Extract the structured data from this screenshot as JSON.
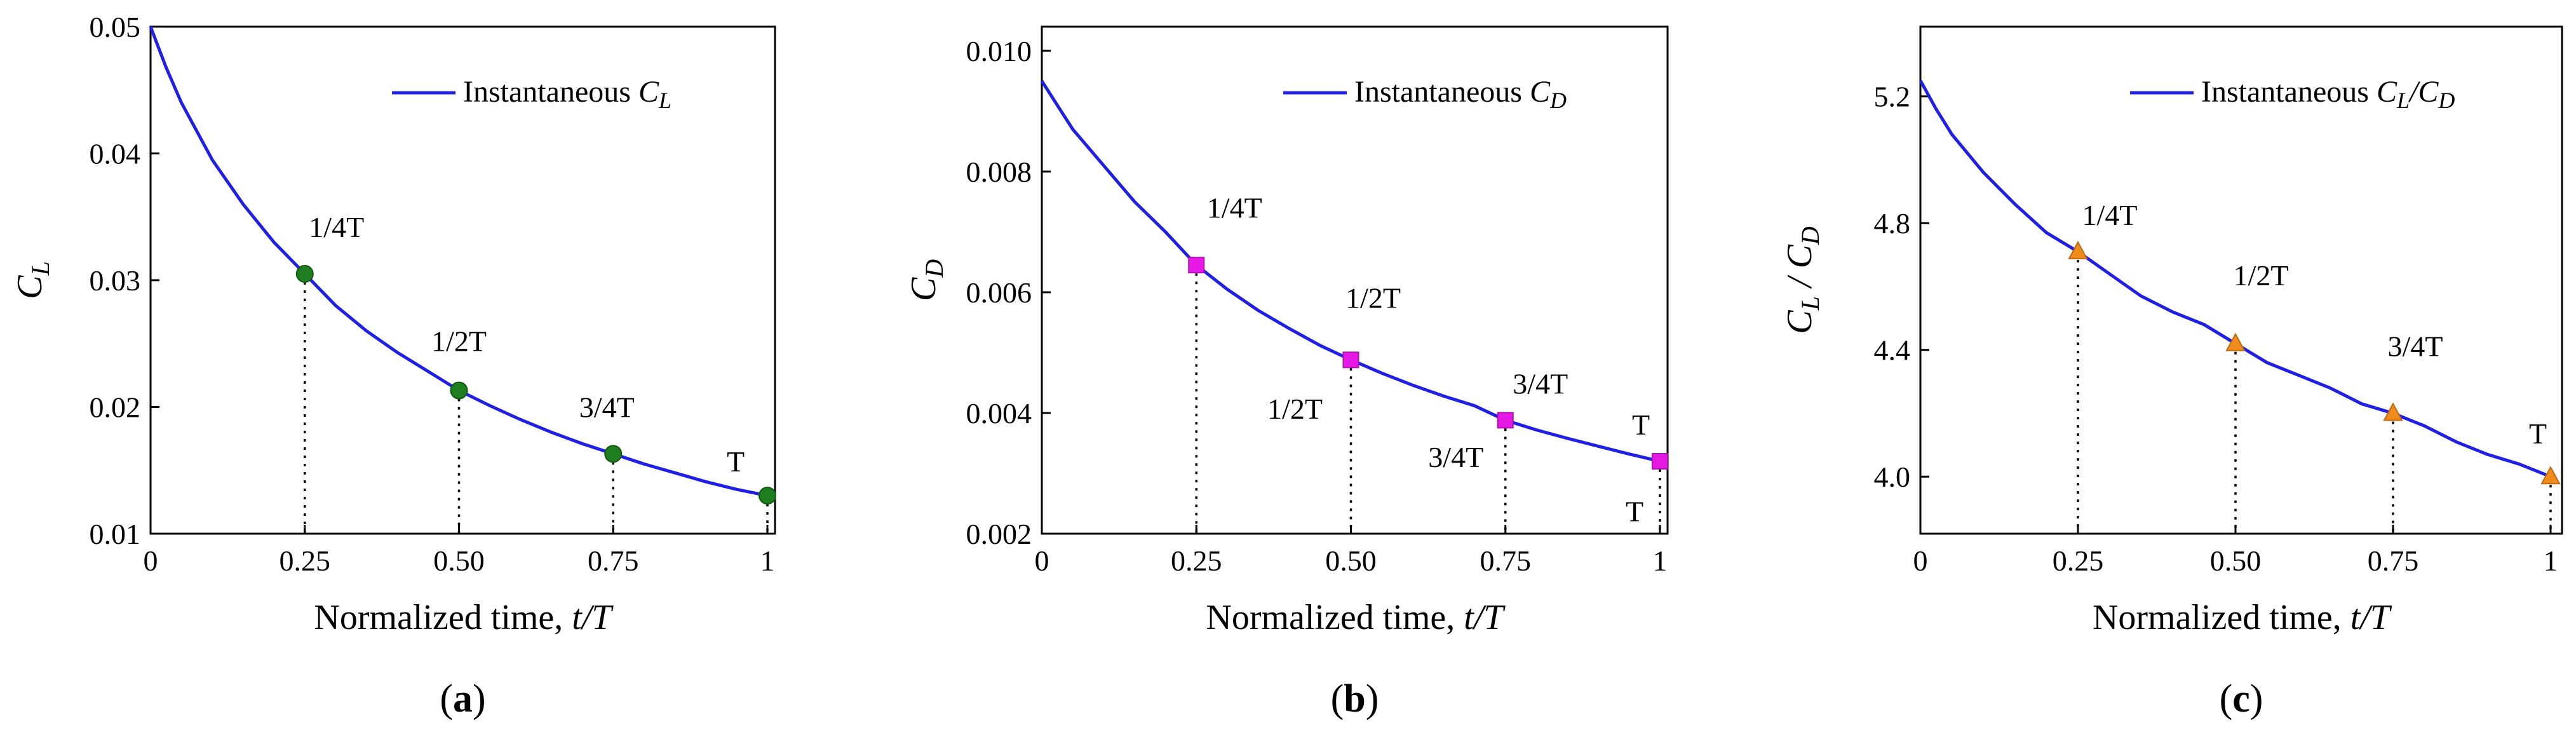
{
  "chart_data": [
    {
      "id": "a",
      "type": "line",
      "panel_label": "a",
      "xlabel": "Normalized time, ",
      "xlabel_var": "t/T",
      "ylabel_main": "C",
      "ylabel_sub": "L",
      "ylabel_rest": "",
      "ylim": [
        0.01,
        0.05
      ],
      "xlim": [
        0,
        1
      ],
      "xticks": [
        0,
        0.25,
        0.5,
        0.75,
        1
      ],
      "xtick_labels": [
        "0",
        "0.25",
        "0.50",
        "0.75",
        "1"
      ],
      "yticks": [
        0.01,
        0.02,
        0.03,
        0.04,
        0.05
      ],
      "ytick_labels": [
        "0.01",
        "0.02",
        "0.03",
        "0.04",
        "0.05"
      ],
      "legend": {
        "text": "Instantaneous ",
        "var": "C",
        "sub": "L",
        "tail": "",
        "location": "top-right"
      },
      "series": [
        {
          "name": "Instantaneous C_L",
          "color": "#1f1fe6",
          "x": [
            0,
            0.025,
            0.05,
            0.1,
            0.15,
            0.2,
            0.25,
            0.3,
            0.35,
            0.4,
            0.45,
            0.5,
            0.55,
            0.6,
            0.65,
            0.7,
            0.75,
            0.8,
            0.85,
            0.9,
            0.95,
            1
          ],
          "y": [
            0.05,
            0.0468,
            0.044,
            0.0395,
            0.036,
            0.033,
            0.0305,
            0.028,
            0.026,
            0.0243,
            0.0228,
            0.0213,
            0.0201,
            0.019,
            0.018,
            0.0171,
            0.0163,
            0.0155,
            0.0148,
            0.0141,
            0.0135,
            0.013
          ]
        }
      ],
      "markers": {
        "shape": "circle",
        "color": "#1e7d1e",
        "points": [
          {
            "x": 0.25,
            "y": 0.0305,
            "label": "1/4T"
          },
          {
            "x": 0.5,
            "y": 0.0213,
            "label": "1/2T"
          },
          {
            "x": 0.75,
            "y": 0.0163,
            "label": "3/4T"
          },
          {
            "x": 1.0,
            "y": 0.013,
            "label": "T"
          }
        ]
      },
      "extra_annotations": []
    },
    {
      "id": "b",
      "type": "line",
      "panel_label": "b",
      "xlabel": "Normalized time, ",
      "xlabel_var": "t/T",
      "ylabel_main": "C",
      "ylabel_sub": "D",
      "ylabel_rest": "",
      "ylim": [
        0.002,
        0.0104
      ],
      "xlim": [
        0,
        1
      ],
      "xticks": [
        0,
        0.25,
        0.5,
        0.75,
        1
      ],
      "xtick_labels": [
        "0",
        "0.25",
        "0.50",
        "0.75",
        "1"
      ],
      "yticks": [
        0.002,
        0.004,
        0.006,
        0.008,
        0.01
      ],
      "ytick_labels": [
        "0.002",
        "0.004",
        "0.006",
        "0.008",
        "0.010"
      ],
      "legend": {
        "text": "Instantaneous ",
        "var": "C",
        "sub": "D",
        "tail": "",
        "location": "top-right"
      },
      "series": [
        {
          "name": "Instantaneous C_D",
          "color": "#1f1fe6",
          "x": [
            0,
            0.025,
            0.05,
            0.1,
            0.15,
            0.2,
            0.25,
            0.3,
            0.35,
            0.4,
            0.45,
            0.5,
            0.55,
            0.6,
            0.65,
            0.7,
            0.75,
            0.8,
            0.85,
            0.9,
            0.95,
            1
          ],
          "y": [
            0.0095,
            0.0091,
            0.0087,
            0.0081,
            0.0075,
            0.007,
            0.00645,
            0.00605,
            0.0057,
            0.0054,
            0.00512,
            0.00488,
            0.00466,
            0.00446,
            0.00428,
            0.00412,
            0.00388,
            0.00372,
            0.00358,
            0.00345,
            0.00332,
            0.0032
          ]
        }
      ],
      "markers": {
        "shape": "square",
        "color": "#e619e6",
        "points": [
          {
            "x": 0.25,
            "y": 0.00645,
            "label": "1/4T"
          },
          {
            "x": 0.5,
            "y": 0.00488,
            "label": "1/2T"
          },
          {
            "x": 0.75,
            "y": 0.00388,
            "label": "3/4T"
          },
          {
            "x": 1.0,
            "y": 0.0032,
            "label": "T"
          }
        ]
      },
      "extra_annotations": [
        {
          "x": 0.5,
          "y": 0.0042,
          "label": "1/2T"
        },
        {
          "x": 0.75,
          "y": 0.0034,
          "label": "3/4T"
        },
        {
          "x": 1.0,
          "y": 0.0025,
          "label": "T"
        }
      ]
    },
    {
      "id": "c",
      "type": "line",
      "panel_label": "c",
      "xlabel": "Normalized time, ",
      "xlabel_var": "t/T",
      "ylabel_main": "C",
      "ylabel_sub": "L",
      "ylabel_rest": " / C",
      "ylabel_sub2": "D",
      "ylim": [
        3.82,
        5.42
      ],
      "xlim": [
        0,
        1
      ],
      "xticks": [
        0,
        0.25,
        0.5,
        0.75,
        1
      ],
      "xtick_labels": [
        "0",
        "0.25",
        "0.50",
        "0.75",
        "1"
      ],
      "yticks": [
        4.0,
        4.4,
        4.8,
        5.2
      ],
      "ytick_labels": [
        "4.0",
        "4.4",
        "4.8",
        "5.2"
      ],
      "legend": {
        "text": "Instantaneous ",
        "var": "C",
        "sub": "L",
        "tail": "/C",
        "sub2": "D",
        "location": "top-right"
      },
      "series": [
        {
          "name": "Instantaneous C_L/C_D",
          "color": "#1f1fe6",
          "x": [
            0,
            0.025,
            0.05,
            0.1,
            0.15,
            0.2,
            0.25,
            0.3,
            0.35,
            0.4,
            0.45,
            0.5,
            0.55,
            0.6,
            0.65,
            0.7,
            0.75,
            0.8,
            0.85,
            0.9,
            0.95,
            1
          ],
          "y": [
            5.25,
            5.16,
            5.08,
            4.96,
            4.86,
            4.77,
            4.71,
            4.64,
            4.57,
            4.52,
            4.48,
            4.42,
            4.36,
            4.32,
            4.28,
            4.23,
            4.2,
            4.16,
            4.11,
            4.07,
            4.04,
            4.0
          ]
        }
      ],
      "markers": {
        "shape": "triangle",
        "color": "#f08c1e",
        "points": [
          {
            "x": 0.25,
            "y": 4.71,
            "label": "1/4T"
          },
          {
            "x": 0.5,
            "y": 4.42,
            "label": "1/2T"
          },
          {
            "x": 0.75,
            "y": 4.2,
            "label": "3/4T"
          },
          {
            "x": 1.0,
            "y": 4.0,
            "label": "T"
          }
        ]
      },
      "extra_annotations": []
    }
  ]
}
